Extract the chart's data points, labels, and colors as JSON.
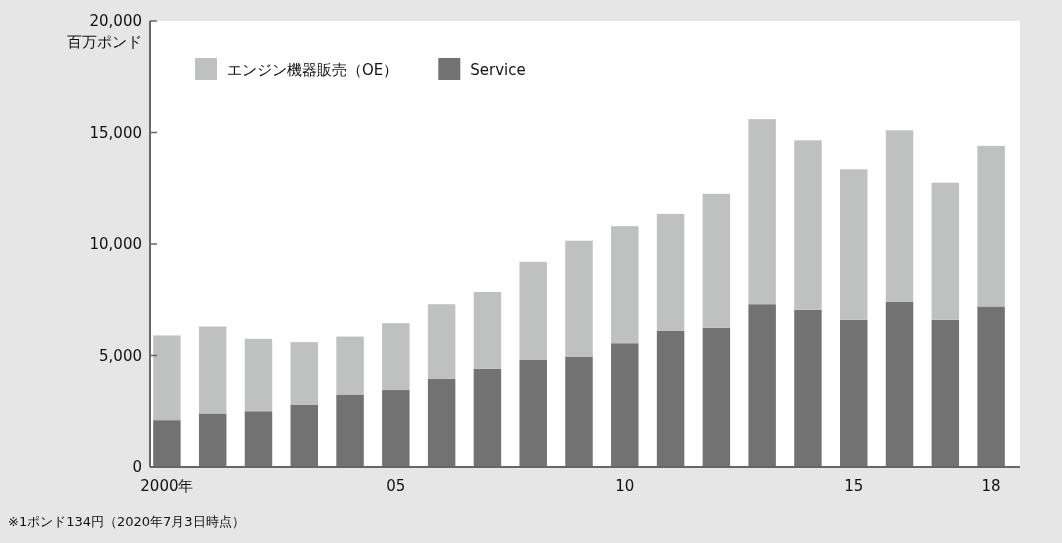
{
  "chart_data": {
    "type": "bar",
    "stacked": true,
    "ylabel": "百万ポンド",
    "categories": [
      "2000年",
      null,
      null,
      null,
      null,
      "05",
      null,
      null,
      null,
      null,
      "10",
      null,
      null,
      null,
      null,
      "15",
      null,
      null,
      "18"
    ],
    "series": [
      {
        "name": "Service",
        "color": "#727272",
        "values": [
          2100,
          2400,
          2500,
          2800,
          3250,
          3450,
          3950,
          4400,
          4800,
          4950,
          5550,
          6100,
          6250,
          7300,
          7050,
          6600,
          7400,
          6600,
          7200
        ]
      },
      {
        "name": "エンジン機器販売（OE）",
        "color": "#bfc1c0",
        "values": [
          3800,
          3900,
          3250,
          2800,
          2600,
          3000,
          3350,
          3450,
          4400,
          5200,
          5250,
          5250,
          6000,
          8300,
          7600,
          6750,
          7700,
          6150,
          7200
        ]
      }
    ],
    "ylim": [
      0,
      20000
    ],
    "yticks": [
      {
        "value": 0,
        "label": "0"
      },
      {
        "value": 5000,
        "label": "5,000"
      },
      {
        "value": 10000,
        "label": "10,000"
      },
      {
        "value": 15000,
        "label": "15,000"
      },
      {
        "value": 20000,
        "label": "20,000"
      }
    ],
    "legend": "top left",
    "annotations": [
      "※1ポンド134円（2020年7月3日時点）"
    ]
  }
}
